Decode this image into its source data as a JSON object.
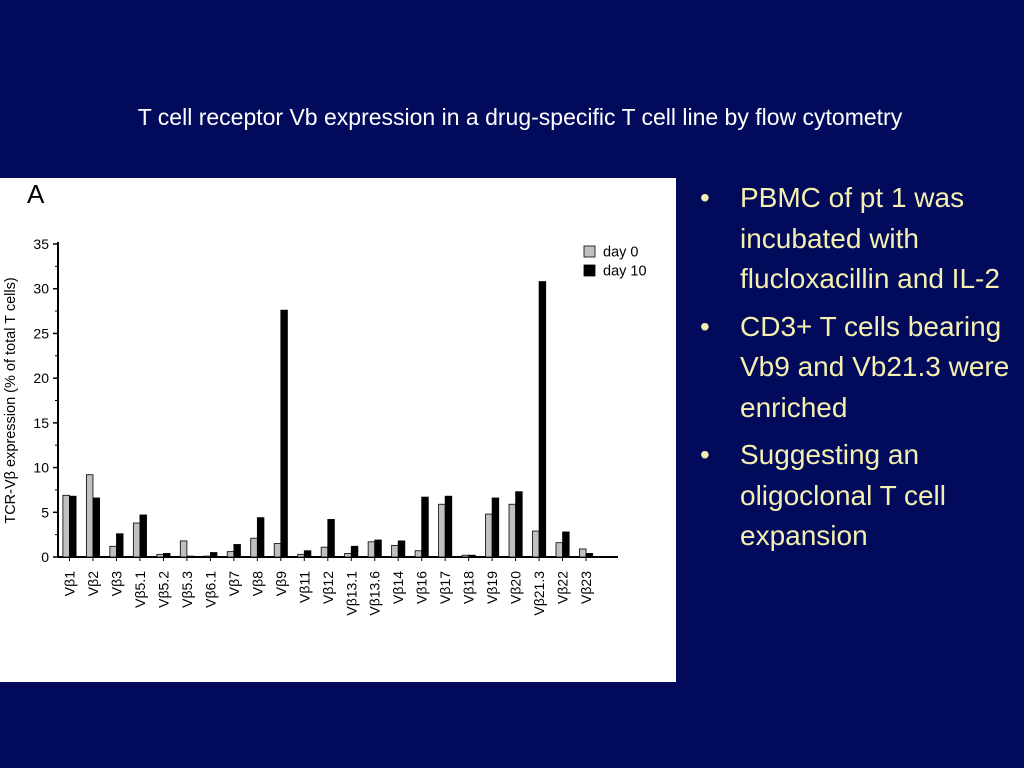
{
  "slide": {
    "title": "T cell receptor Vb expression in a drug-specific T cell line by flow cytometry"
  },
  "bullets": [
    "PBMC of pt 1 was incubated with flucloxacillin and IL-2",
    "CD3+ T cells bearing Vb9 and Vb21.3 were enriched",
    "Suggesting an oligoclonal T cell expansion"
  ],
  "bullet_glyph": "•",
  "colors": {
    "background": "#020a5c",
    "title_text": "#ffffff",
    "bullet_text": "#f5f0b0",
    "day0_fill": "#c0c0c0",
    "day10_fill": "#000000"
  },
  "chart_data": {
    "type": "bar",
    "panel_label": "A",
    "title": "",
    "xlabel": "",
    "ylabel": "TCR-Vβ expression (% of total T cells)",
    "ylim": [
      0,
      35
    ],
    "yticks": [
      0,
      5,
      10,
      15,
      20,
      25,
      30,
      35
    ],
    "grid": false,
    "legend": "top-right",
    "categories": [
      "Vβ1",
      "Vβ2",
      "Vβ3",
      "Vβ5.1",
      "Vβ5.2",
      "Vβ5.3",
      "Vβ6.1",
      "Vβ7",
      "Vβ8",
      "Vβ9",
      "Vβ11",
      "Vβ12",
      "Vβ13.1",
      "Vβ13.6",
      "Vβ14",
      "Vβ16",
      "Vβ17",
      "Vβ18",
      "Vβ19",
      "Vβ20",
      "Vβ21.3",
      "Vβ22",
      "Vβ23"
    ],
    "series": [
      {
        "name": "day 0",
        "values": [
          6.9,
          9.2,
          1.2,
          3.8,
          0.3,
          1.8,
          0.1,
          0.6,
          2.1,
          1.5,
          0.3,
          1.1,
          0.4,
          1.7,
          1.3,
          0.7,
          5.9,
          0.2,
          4.8,
          5.9,
          2.9,
          1.6,
          0.9
        ]
      },
      {
        "name": "day 10",
        "values": [
          6.8,
          6.6,
          2.6,
          4.7,
          0.4,
          0.1,
          0.5,
          1.4,
          4.4,
          27.6,
          0.7,
          4.2,
          1.2,
          1.9,
          1.8,
          6.7,
          6.8,
          0.2,
          6.6,
          7.3,
          30.8,
          2.8,
          0.4
        ]
      }
    ]
  }
}
